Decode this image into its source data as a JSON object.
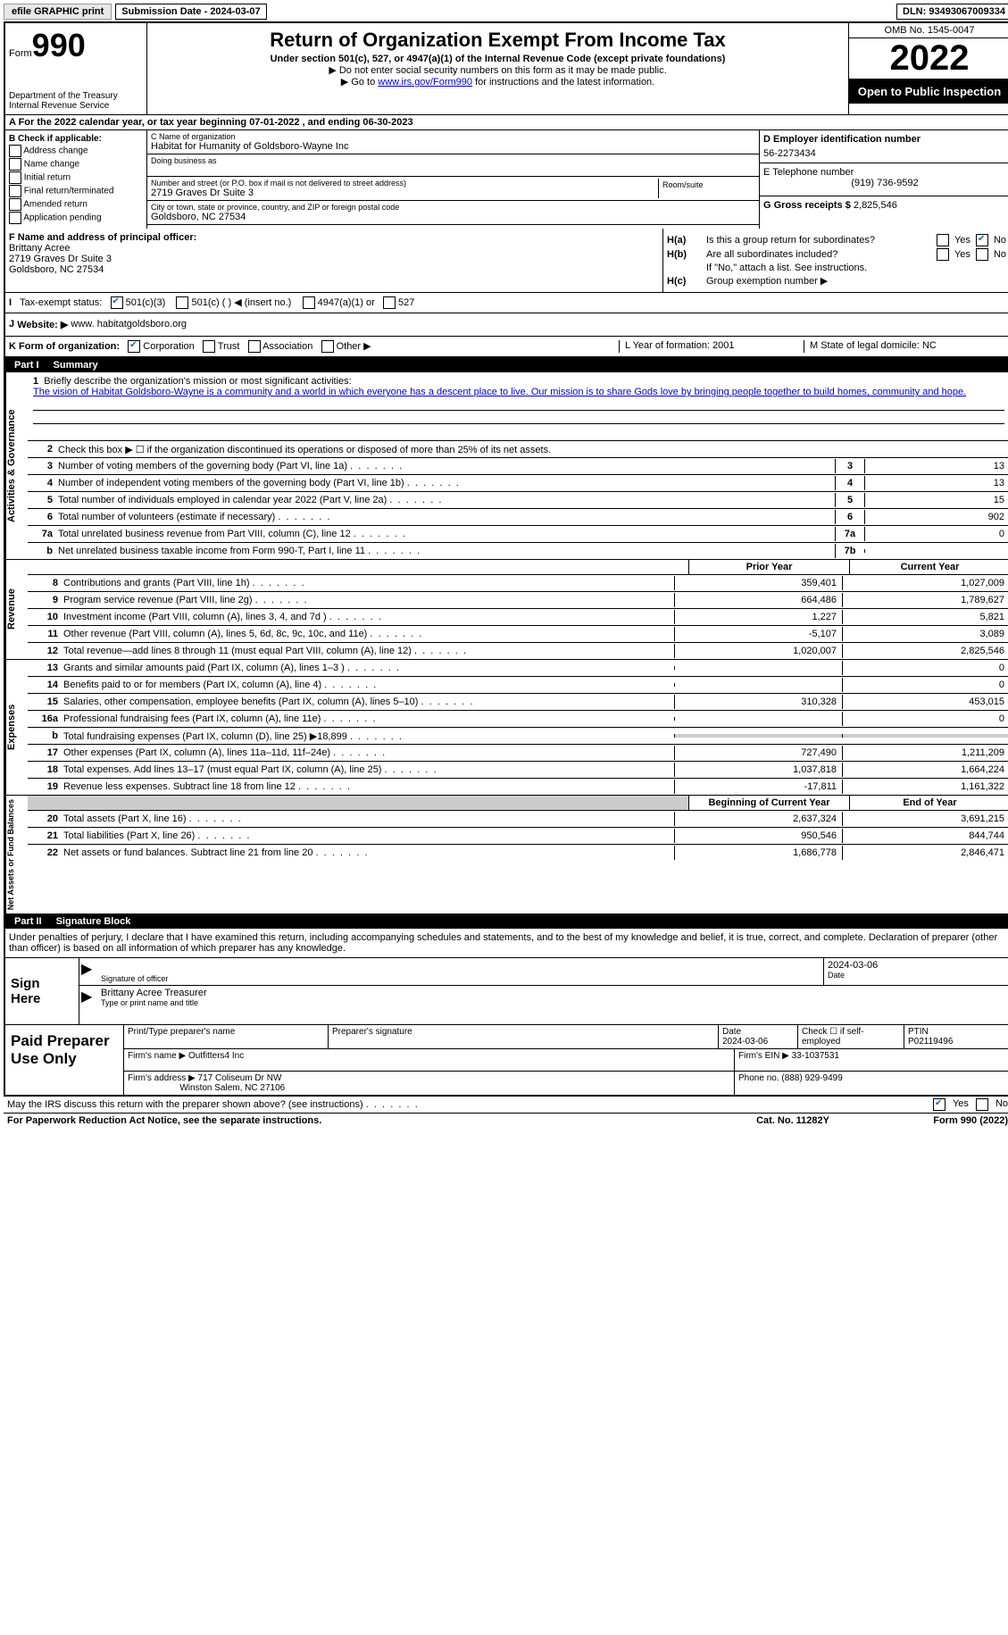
{
  "top": {
    "efile_print": "efile GRAPHIC print",
    "submission_date_label": "Submission Date - 2024-03-07",
    "dln": "DLN: 93493067009334"
  },
  "header": {
    "form_label": "Form",
    "form_number": "990",
    "title": "Return of Organization Exempt From Income Tax",
    "sub1": "Under section 501(c), 527, or 4947(a)(1) of the Internal Revenue Code (except private foundations)",
    "sub2": "▶ Do not enter social security numbers on this form as it may be made public.",
    "sub3_pre": "▶ Go to ",
    "sub3_link": "www.irs.gov/Form990",
    "sub3_post": " for instructions and the latest information.",
    "dept": "Department of the Treasury",
    "irs": "Internal Revenue Service",
    "omb": "OMB No. 1545-0047",
    "year": "2022",
    "inspection": "Open to Public Inspection"
  },
  "row_a": "A For the 2022 calendar year, or tax year beginning 07-01-2022    , and ending 06-30-2023",
  "block_b": {
    "label": "B Check if applicable:",
    "addr": "Address change",
    "name": "Name change",
    "initial": "Initial return",
    "final": "Final return/terminated",
    "amended": "Amended return",
    "pending": "Application pending"
  },
  "block_c": {
    "name_label": "C Name of organization",
    "org_name": "Habitat for Humanity of Goldsboro-Wayne Inc",
    "dba_label": "Doing business as",
    "addr_label": "Number and street (or P.O. box if mail is not delivered to street address)",
    "room_label": "Room/suite",
    "street": "2719 Graves Dr Suite 3",
    "city_label": "City or town, state or province, country, and ZIP or foreign postal code",
    "city": "Goldsboro, NC  27534"
  },
  "block_d": {
    "ein_label": "D Employer identification number",
    "ein": "56-2273434",
    "phone_label": "E Telephone number",
    "phone": "(919) 736-9592",
    "gross_label": "G Gross receipts $",
    "gross": "2,825,546"
  },
  "block_f": {
    "label": "F Name and address of principal officer:",
    "name": "Brittany Acree",
    "street": "2719 Graves Dr Suite 3",
    "city": "Goldsboro, NC  27534"
  },
  "block_h": {
    "ha_label": "H(a)",
    "ha_text": "Is this a group return for subordinates?",
    "hb_label": "H(b)",
    "hb_text": "Are all subordinates included?",
    "hb_note": "If \"No,\" attach a list. See instructions.",
    "hc_label": "H(c)",
    "hc_text": "Group exemption number ▶",
    "yes": "Yes",
    "no": "No"
  },
  "row_i": {
    "label": "I",
    "text": "Tax-exempt status:",
    "opt1": "501(c)(3)",
    "opt2": "501(c) (   ) ◀ (insert no.)",
    "opt3": "4947(a)(1) or",
    "opt4": "527"
  },
  "row_j": {
    "label": "J",
    "text": "Website: ▶",
    "url": "www. habitatgoldsboro.org"
  },
  "row_k": {
    "label": "K Form of organization:",
    "corp": "Corporation",
    "trust": "Trust",
    "assoc": "Association",
    "other": "Other ▶",
    "l_label": "L Year of formation: 2001",
    "m_label": "M State of legal domicile: NC"
  },
  "part1": {
    "num": "Part I",
    "title": "Summary"
  },
  "sidelabels": {
    "gov": "Activities & Governance",
    "rev": "Revenue",
    "exp": "Expenses",
    "net": "Net Assets or Fund Balances"
  },
  "line1": {
    "num": "1",
    "text": "Briefly describe the organization's mission or most significant activities:",
    "mission": "The vision of Habitat Goldsboro-Wayne is a community and a world in which everyone has a descent place to live. Our mission is to share Gods love by bringing people together to build homes, community and hope."
  },
  "gov_lines": [
    {
      "num": "2",
      "desc": "Check this box ▶ ☐ if the organization discontinued its operations or disposed of more than 25% of its net assets."
    },
    {
      "num": "3",
      "desc": "Number of voting members of the governing body (Part VI, line 1a)",
      "box": "3",
      "val": "13"
    },
    {
      "num": "4",
      "desc": "Number of independent voting members of the governing body (Part VI, line 1b)",
      "box": "4",
      "val": "13"
    },
    {
      "num": "5",
      "desc": "Total number of individuals employed in calendar year 2022 (Part V, line 2a)",
      "box": "5",
      "val": "15"
    },
    {
      "num": "6",
      "desc": "Total number of volunteers (estimate if necessary)",
      "box": "6",
      "val": "902"
    },
    {
      "num": "7a",
      "desc": "Total unrelated business revenue from Part VIII, column (C), line 12",
      "box": "7a",
      "val": "0"
    },
    {
      "num": "b",
      "desc": "Net unrelated business taxable income from Form 990-T, Part I, line 11",
      "box": "7b",
      "val": ""
    }
  ],
  "col_heads": {
    "prior": "Prior Year",
    "current": "Current Year"
  },
  "rev_lines": [
    {
      "num": "8",
      "desc": "Contributions and grants (Part VIII, line 1h)",
      "v1": "359,401",
      "v2": "1,027,009"
    },
    {
      "num": "9",
      "desc": "Program service revenue (Part VIII, line 2g)",
      "v1": "664,486",
      "v2": "1,789,627"
    },
    {
      "num": "10",
      "desc": "Investment income (Part VIII, column (A), lines 3, 4, and 7d )",
      "v1": "1,227",
      "v2": "5,821"
    },
    {
      "num": "11",
      "desc": "Other revenue (Part VIII, column (A), lines 5, 6d, 8c, 9c, 10c, and 11e)",
      "v1": "-5,107",
      "v2": "3,089"
    },
    {
      "num": "12",
      "desc": "Total revenue—add lines 8 through 11 (must equal Part VIII, column (A), line 12)",
      "v1": "1,020,007",
      "v2": "2,825,546"
    }
  ],
  "exp_lines": [
    {
      "num": "13",
      "desc": "Grants and similar amounts paid (Part IX, column (A), lines 1–3 )",
      "v1": "",
      "v2": "0"
    },
    {
      "num": "14",
      "desc": "Benefits paid to or for members (Part IX, column (A), line 4)",
      "v1": "",
      "v2": "0"
    },
    {
      "num": "15",
      "desc": "Salaries, other compensation, employee benefits (Part IX, column (A), lines 5–10)",
      "v1": "310,328",
      "v2": "453,015"
    },
    {
      "num": "16a",
      "desc": "Professional fundraising fees (Part IX, column (A), line 11e)",
      "v1": "",
      "v2": "0"
    },
    {
      "num": "b",
      "desc": "Total fundraising expenses (Part IX, column (D), line 25) ▶18,899",
      "v1": "shaded",
      "v2": "shaded"
    },
    {
      "num": "17",
      "desc": "Other expenses (Part IX, column (A), lines 11a–11d, 11f–24e)",
      "v1": "727,490",
      "v2": "1,211,209"
    },
    {
      "num": "18",
      "desc": "Total expenses. Add lines 13–17 (must equal Part IX, column (A), line 25)",
      "v1": "1,037,818",
      "v2": "1,664,224"
    },
    {
      "num": "19",
      "desc": "Revenue less expenses. Subtract line 18 from line 12",
      "v1": "-17,811",
      "v2": "1,161,322"
    }
  ],
  "net_heads": {
    "begin": "Beginning of Current Year",
    "end": "End of Year"
  },
  "net_lines": [
    {
      "num": "20",
      "desc": "Total assets (Part X, line 16)",
      "v1": "2,637,324",
      "v2": "3,691,215"
    },
    {
      "num": "21",
      "desc": "Total liabilities (Part X, line 26)",
      "v1": "950,546",
      "v2": "844,744"
    },
    {
      "num": "22",
      "desc": "Net assets or fund balances. Subtract line 21 from line 20",
      "v1": "1,686,778",
      "v2": "2,846,471"
    }
  ],
  "part2": {
    "num": "Part II",
    "title": "Signature Block",
    "prelude": "Under penalties of perjury, I declare that I have examined this return, including accompanying schedules and statements, and to the best of my knowledge and belief, it is true, correct, and complete. Declaration of preparer (other than officer) is based on all information of which preparer has any knowledge."
  },
  "sign": {
    "label": "Sign Here",
    "sig_of_officer": "Signature of officer",
    "date": "2024-03-06",
    "date_label": "Date",
    "name_title": "Brittany Acree  Treasurer",
    "name_title_label": "Type or print name and title"
  },
  "paid": {
    "label": "Paid Preparer Use Only",
    "print_label": "Print/Type preparer's name",
    "sig_label": "Preparer's signature",
    "date_label": "Date",
    "date_val": "2024-03-06",
    "check_label": "Check ☐ if self-employed",
    "ptin_label": "PTIN",
    "ptin": "P02119496",
    "firm_name_label": "Firm's name     ▶",
    "firm_name": "Outfitters4 Inc",
    "firm_ein_label": "Firm's EIN ▶",
    "firm_ein": "33-1037531",
    "firm_addr_label": "Firm's address ▶",
    "firm_addr1": "717 Coliseum Dr NW",
    "firm_addr2": "Winston Salem, NC  27106",
    "phone_label": "Phone no.",
    "phone": "(888) 929-9499"
  },
  "discuss": {
    "text": "May the IRS discuss this return with the preparer shown above? (see instructions)",
    "yes": "Yes",
    "no": "No"
  },
  "footer": {
    "left": "For Paperwork Reduction Act Notice, see the separate instructions.",
    "mid": "Cat. No. 11282Y",
    "right": "Form 990 (2022)"
  }
}
